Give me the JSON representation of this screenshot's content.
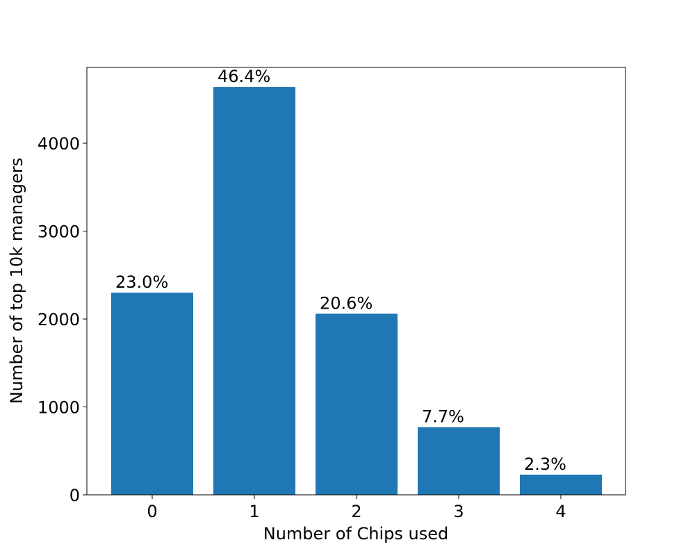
{
  "chart_data": {
    "type": "bar",
    "x_label": "Number of Chips used",
    "y_label": "Number of top 10k managers",
    "categories": [
      "0",
      "1",
      "2",
      "3",
      "4"
    ],
    "values": [
      2300,
      4640,
      2060,
      770,
      230
    ],
    "value_labels": [
      "23.0%",
      "46.4%",
      "20.6%",
      "7.7%",
      "2.3%"
    ],
    "color": "#1f77b4",
    "ylim": [
      0,
      4862
    ],
    "yticks": [
      0,
      1000,
      2000,
      3000,
      4000
    ],
    "grid": false
  }
}
